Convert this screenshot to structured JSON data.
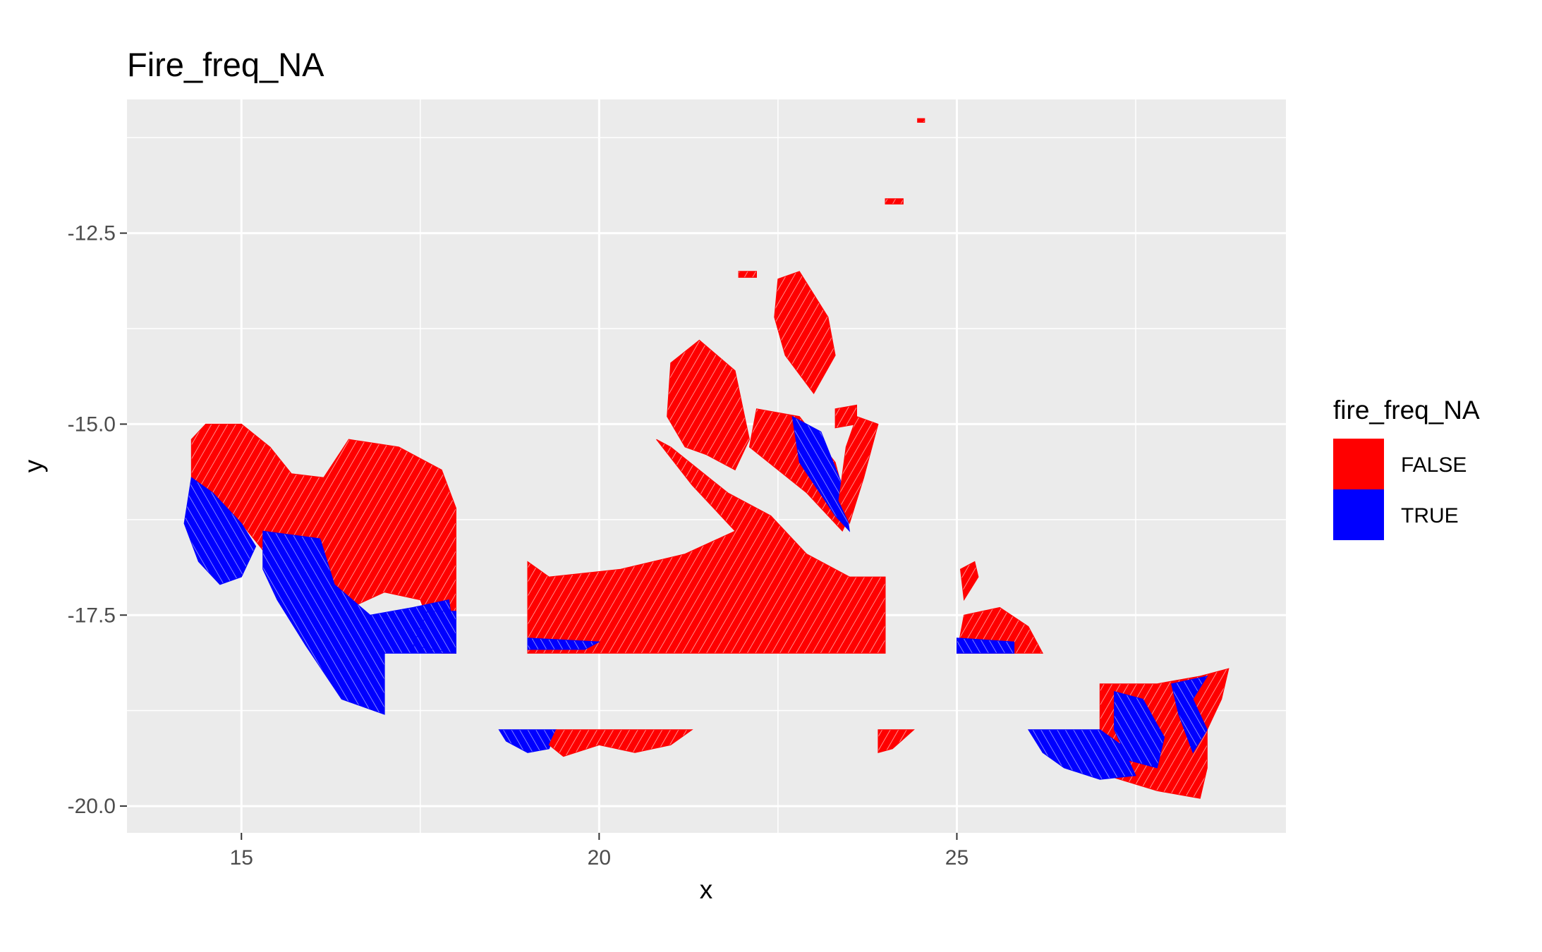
{
  "chart_data": {
    "type": "heatmap",
    "title": "Fire_freq_NA",
    "xlabel": "x",
    "ylabel": "y",
    "xlim": [
      13.4,
      29.6
    ],
    "ylim": [
      -20.35,
      -10.75
    ],
    "x_ticks": [
      15,
      20,
      25
    ],
    "y_ticks": [
      -12.5,
      -15.0,
      -17.5,
      -20.0
    ],
    "x_tick_labels": [
      "15",
      "20",
      "25"
    ],
    "y_tick_labels": [
      "-12.5",
      "-15.0",
      "-17.5",
      "-20.0"
    ],
    "grid": true,
    "legend": {
      "title": "fire_freq_NA",
      "position": "right",
      "entries": [
        {
          "label": "FALSE",
          "color": "#ff0000"
        },
        {
          "label": "TRUE",
          "color": "#0000ff"
        }
      ]
    },
    "colors": {
      "FALSE": "#ff0000",
      "TRUE": "#0000ff",
      "panel": "#ebebeb",
      "grid": "#ffffff"
    },
    "regions": [
      {
        "name": "region-west-false",
        "value": "FALSE",
        "points": [
          [
            14.5,
            -15.0
          ],
          [
            15.0,
            -15.0
          ],
          [
            15.4,
            -15.3
          ],
          [
            15.7,
            -15.65
          ],
          [
            16.15,
            -15.7
          ],
          [
            16.5,
            -15.2
          ],
          [
            17.2,
            -15.3
          ],
          [
            17.8,
            -15.6
          ],
          [
            18.0,
            -16.1
          ],
          [
            18.0,
            -18.0
          ],
          [
            17.8,
            -18.0
          ],
          [
            17.5,
            -17.3
          ],
          [
            17.0,
            -17.2
          ],
          [
            16.3,
            -17.5
          ],
          [
            15.6,
            -17.0
          ],
          [
            15.0,
            -16.3
          ],
          [
            14.6,
            -15.9
          ],
          [
            14.3,
            -15.8
          ],
          [
            14.3,
            -15.2
          ]
        ]
      },
      {
        "name": "region-west-true-left",
        "value": "TRUE",
        "points": [
          [
            14.3,
            -15.7
          ],
          [
            14.6,
            -15.9
          ],
          [
            15.0,
            -16.3
          ],
          [
            15.2,
            -16.6
          ],
          [
            15.0,
            -17.0
          ],
          [
            14.7,
            -17.1
          ],
          [
            14.4,
            -16.8
          ],
          [
            14.2,
            -16.3
          ]
        ]
      },
      {
        "name": "region-west-true-center",
        "value": "TRUE",
        "points": [
          [
            15.3,
            -16.4
          ],
          [
            16.1,
            -16.5
          ],
          [
            16.3,
            -17.1
          ],
          [
            16.8,
            -17.5
          ],
          [
            17.4,
            -17.4
          ],
          [
            17.9,
            -17.3
          ],
          [
            18.0,
            -18.0
          ],
          [
            17.0,
            -18.0
          ],
          [
            17.0,
            -18.8
          ],
          [
            16.4,
            -18.6
          ],
          [
            15.9,
            -17.9
          ],
          [
            15.5,
            -17.3
          ],
          [
            15.3,
            -16.9
          ]
        ]
      },
      {
        "name": "region-central-false",
        "value": "FALSE",
        "points": [
          [
            19.0,
            -16.8
          ],
          [
            19.3,
            -17.0
          ],
          [
            20.3,
            -16.9
          ],
          [
            21.2,
            -16.7
          ],
          [
            21.9,
            -16.4
          ],
          [
            21.3,
            -15.8
          ],
          [
            20.8,
            -15.2
          ],
          [
            21.0,
            -15.3
          ],
          [
            21.8,
            -15.9
          ],
          [
            22.4,
            -16.2
          ],
          [
            22.9,
            -16.7
          ],
          [
            23.5,
            -17.0
          ],
          [
            24.0,
            -17.0
          ],
          [
            24.0,
            -18.0
          ],
          [
            19.0,
            -18.0
          ]
        ]
      },
      {
        "name": "region-north-false-1",
        "value": "FALSE",
        "points": [
          [
            21.0,
            -14.2
          ],
          [
            21.4,
            -13.9
          ],
          [
            21.9,
            -14.3
          ],
          [
            22.1,
            -15.2
          ],
          [
            21.9,
            -15.6
          ],
          [
            21.5,
            -15.4
          ],
          [
            21.2,
            -15.3
          ],
          [
            20.95,
            -14.9
          ]
        ]
      },
      {
        "name": "region-north-false-2",
        "value": "FALSE",
        "points": [
          [
            22.2,
            -14.8
          ],
          [
            22.8,
            -14.9
          ],
          [
            23.3,
            -15.5
          ],
          [
            23.5,
            -16.2
          ],
          [
            23.4,
            -16.4
          ],
          [
            22.9,
            -15.9
          ],
          [
            22.5,
            -15.6
          ],
          [
            22.1,
            -15.3
          ]
        ]
      },
      {
        "name": "region-north-false-3",
        "value": "FALSE",
        "points": [
          [
            22.5,
            -13.1
          ],
          [
            22.8,
            -13.0
          ],
          [
            23.2,
            -13.6
          ],
          [
            23.3,
            -14.1
          ],
          [
            23.0,
            -14.6
          ],
          [
            22.6,
            -14.1
          ],
          [
            22.45,
            -13.6
          ]
        ]
      },
      {
        "name": "region-north-false-4",
        "value": "FALSE",
        "points": [
          [
            23.3,
            -14.8
          ],
          [
            23.6,
            -14.75
          ],
          [
            23.6,
            -15.0
          ],
          [
            23.3,
            -15.05
          ]
        ]
      },
      {
        "name": "region-north-true-wedge",
        "value": "TRUE",
        "points": [
          [
            22.7,
            -14.9
          ],
          [
            23.1,
            -15.1
          ],
          [
            23.4,
            -15.8
          ],
          [
            23.5,
            -16.4
          ],
          [
            23.3,
            -16.2
          ],
          [
            22.8,
            -15.5
          ]
        ]
      },
      {
        "name": "region-north-right-stripe",
        "value": "FALSE",
        "points": [
          [
            23.6,
            -14.9
          ],
          [
            23.9,
            -15.0
          ],
          [
            23.7,
            -15.7
          ],
          [
            23.5,
            -16.3
          ],
          [
            23.35,
            -16.0
          ],
          [
            23.45,
            -15.3
          ]
        ]
      },
      {
        "name": "region-east-small-false",
        "value": "FALSE",
        "points": [
          [
            25.1,
            -17.5
          ],
          [
            25.6,
            -17.4
          ],
          [
            26.0,
            -17.65
          ],
          [
            26.2,
            -18.0
          ],
          [
            25.0,
            -18.0
          ]
        ]
      },
      {
        "name": "region-east-dot-false",
        "value": "FALSE",
        "points": [
          [
            25.05,
            -16.9
          ],
          [
            25.25,
            -16.8
          ],
          [
            25.3,
            -17.0
          ],
          [
            25.1,
            -17.3
          ]
        ]
      },
      {
        "name": "region-east-small-true",
        "value": "TRUE",
        "points": [
          [
            25.0,
            -17.8
          ],
          [
            25.8,
            -17.85
          ],
          [
            25.8,
            -18.0
          ],
          [
            25.0,
            -18.0
          ]
        ]
      },
      {
        "name": "region-south-west-true",
        "value": "TRUE",
        "points": [
          [
            18.6,
            -19.0
          ],
          [
            19.4,
            -19.0
          ],
          [
            19.3,
            -19.25
          ],
          [
            19.0,
            -19.3
          ],
          [
            18.7,
            -19.15
          ]
        ]
      },
      {
        "name": "region-south-central-false",
        "value": "FALSE",
        "points": [
          [
            19.4,
            -19.0
          ],
          [
            21.3,
            -19.0
          ],
          [
            21.0,
            -19.2
          ],
          [
            20.5,
            -19.3
          ],
          [
            20.0,
            -19.2
          ],
          [
            19.5,
            -19.35
          ],
          [
            19.3,
            -19.2
          ]
        ]
      },
      {
        "name": "region-south-small-false",
        "value": "FALSE",
        "points": [
          [
            23.9,
            -19.0
          ],
          [
            24.4,
            -19.0
          ],
          [
            24.1,
            -19.25
          ],
          [
            23.9,
            -19.3
          ]
        ]
      },
      {
        "name": "region-southeast-false",
        "value": "FALSE",
        "points": [
          [
            27.0,
            -18.4
          ],
          [
            27.8,
            -18.4
          ],
          [
            28.4,
            -18.3
          ],
          [
            28.8,
            -18.2
          ],
          [
            28.7,
            -18.6
          ],
          [
            28.5,
            -19.0
          ],
          [
            28.5,
            -19.5
          ],
          [
            28.4,
            -19.9
          ],
          [
            27.8,
            -19.8
          ],
          [
            27.1,
            -19.6
          ],
          [
            27.0,
            -19.0
          ]
        ]
      },
      {
        "name": "region-southeast-true-west",
        "value": "TRUE",
        "points": [
          [
            26.0,
            -19.0
          ],
          [
            27.0,
            -19.0
          ],
          [
            27.3,
            -19.2
          ],
          [
            27.5,
            -19.6
          ],
          [
            27.0,
            -19.65
          ],
          [
            26.5,
            -19.5
          ],
          [
            26.2,
            -19.3
          ]
        ]
      },
      {
        "name": "region-southeast-true-inner",
        "value": "TRUE",
        "points": [
          [
            27.2,
            -18.5
          ],
          [
            27.6,
            -18.6
          ],
          [
            27.9,
            -19.1
          ],
          [
            27.8,
            -19.5
          ],
          [
            27.4,
            -19.4
          ],
          [
            27.2,
            -19.0
          ]
        ]
      },
      {
        "name": "region-southeast-true-east",
        "value": "TRUE",
        "points": [
          [
            28.0,
            -18.4
          ],
          [
            28.5,
            -18.3
          ],
          [
            28.3,
            -18.6
          ],
          [
            28.5,
            -19.0
          ],
          [
            28.3,
            -19.3
          ],
          [
            28.1,
            -18.8
          ]
        ]
      },
      {
        "name": "region-strip-true-west",
        "value": "TRUE",
        "points": [
          [
            17.6,
            -17.45
          ],
          [
            18.0,
            -17.45
          ],
          [
            18.0,
            -18.0
          ],
          [
            17.4,
            -17.9
          ]
        ]
      },
      {
        "name": "region-strip-true-central",
        "value": "TRUE",
        "points": [
          [
            19.0,
            -17.8
          ],
          [
            20.0,
            -17.85
          ],
          [
            19.8,
            -17.95
          ],
          [
            19.0,
            -17.95
          ]
        ]
      },
      {
        "name": "region-top-dot-1",
        "value": "FALSE",
        "points": [
          [
            24.0,
            -12.05
          ],
          [
            24.25,
            -12.05
          ],
          [
            24.25,
            -12.12
          ],
          [
            24.0,
            -12.12
          ]
        ]
      },
      {
        "name": "region-top-dot-2",
        "value": "FALSE",
        "points": [
          [
            21.95,
            -13.0
          ],
          [
            22.2,
            -13.0
          ],
          [
            22.2,
            -13.08
          ],
          [
            21.95,
            -13.08
          ]
        ]
      },
      {
        "name": "region-top-dot-3",
        "value": "FALSE",
        "points": [
          [
            24.45,
            -11.0
          ],
          [
            24.55,
            -11.0
          ],
          [
            24.55,
            -11.05
          ],
          [
            24.45,
            -11.05
          ]
        ]
      }
    ]
  }
}
